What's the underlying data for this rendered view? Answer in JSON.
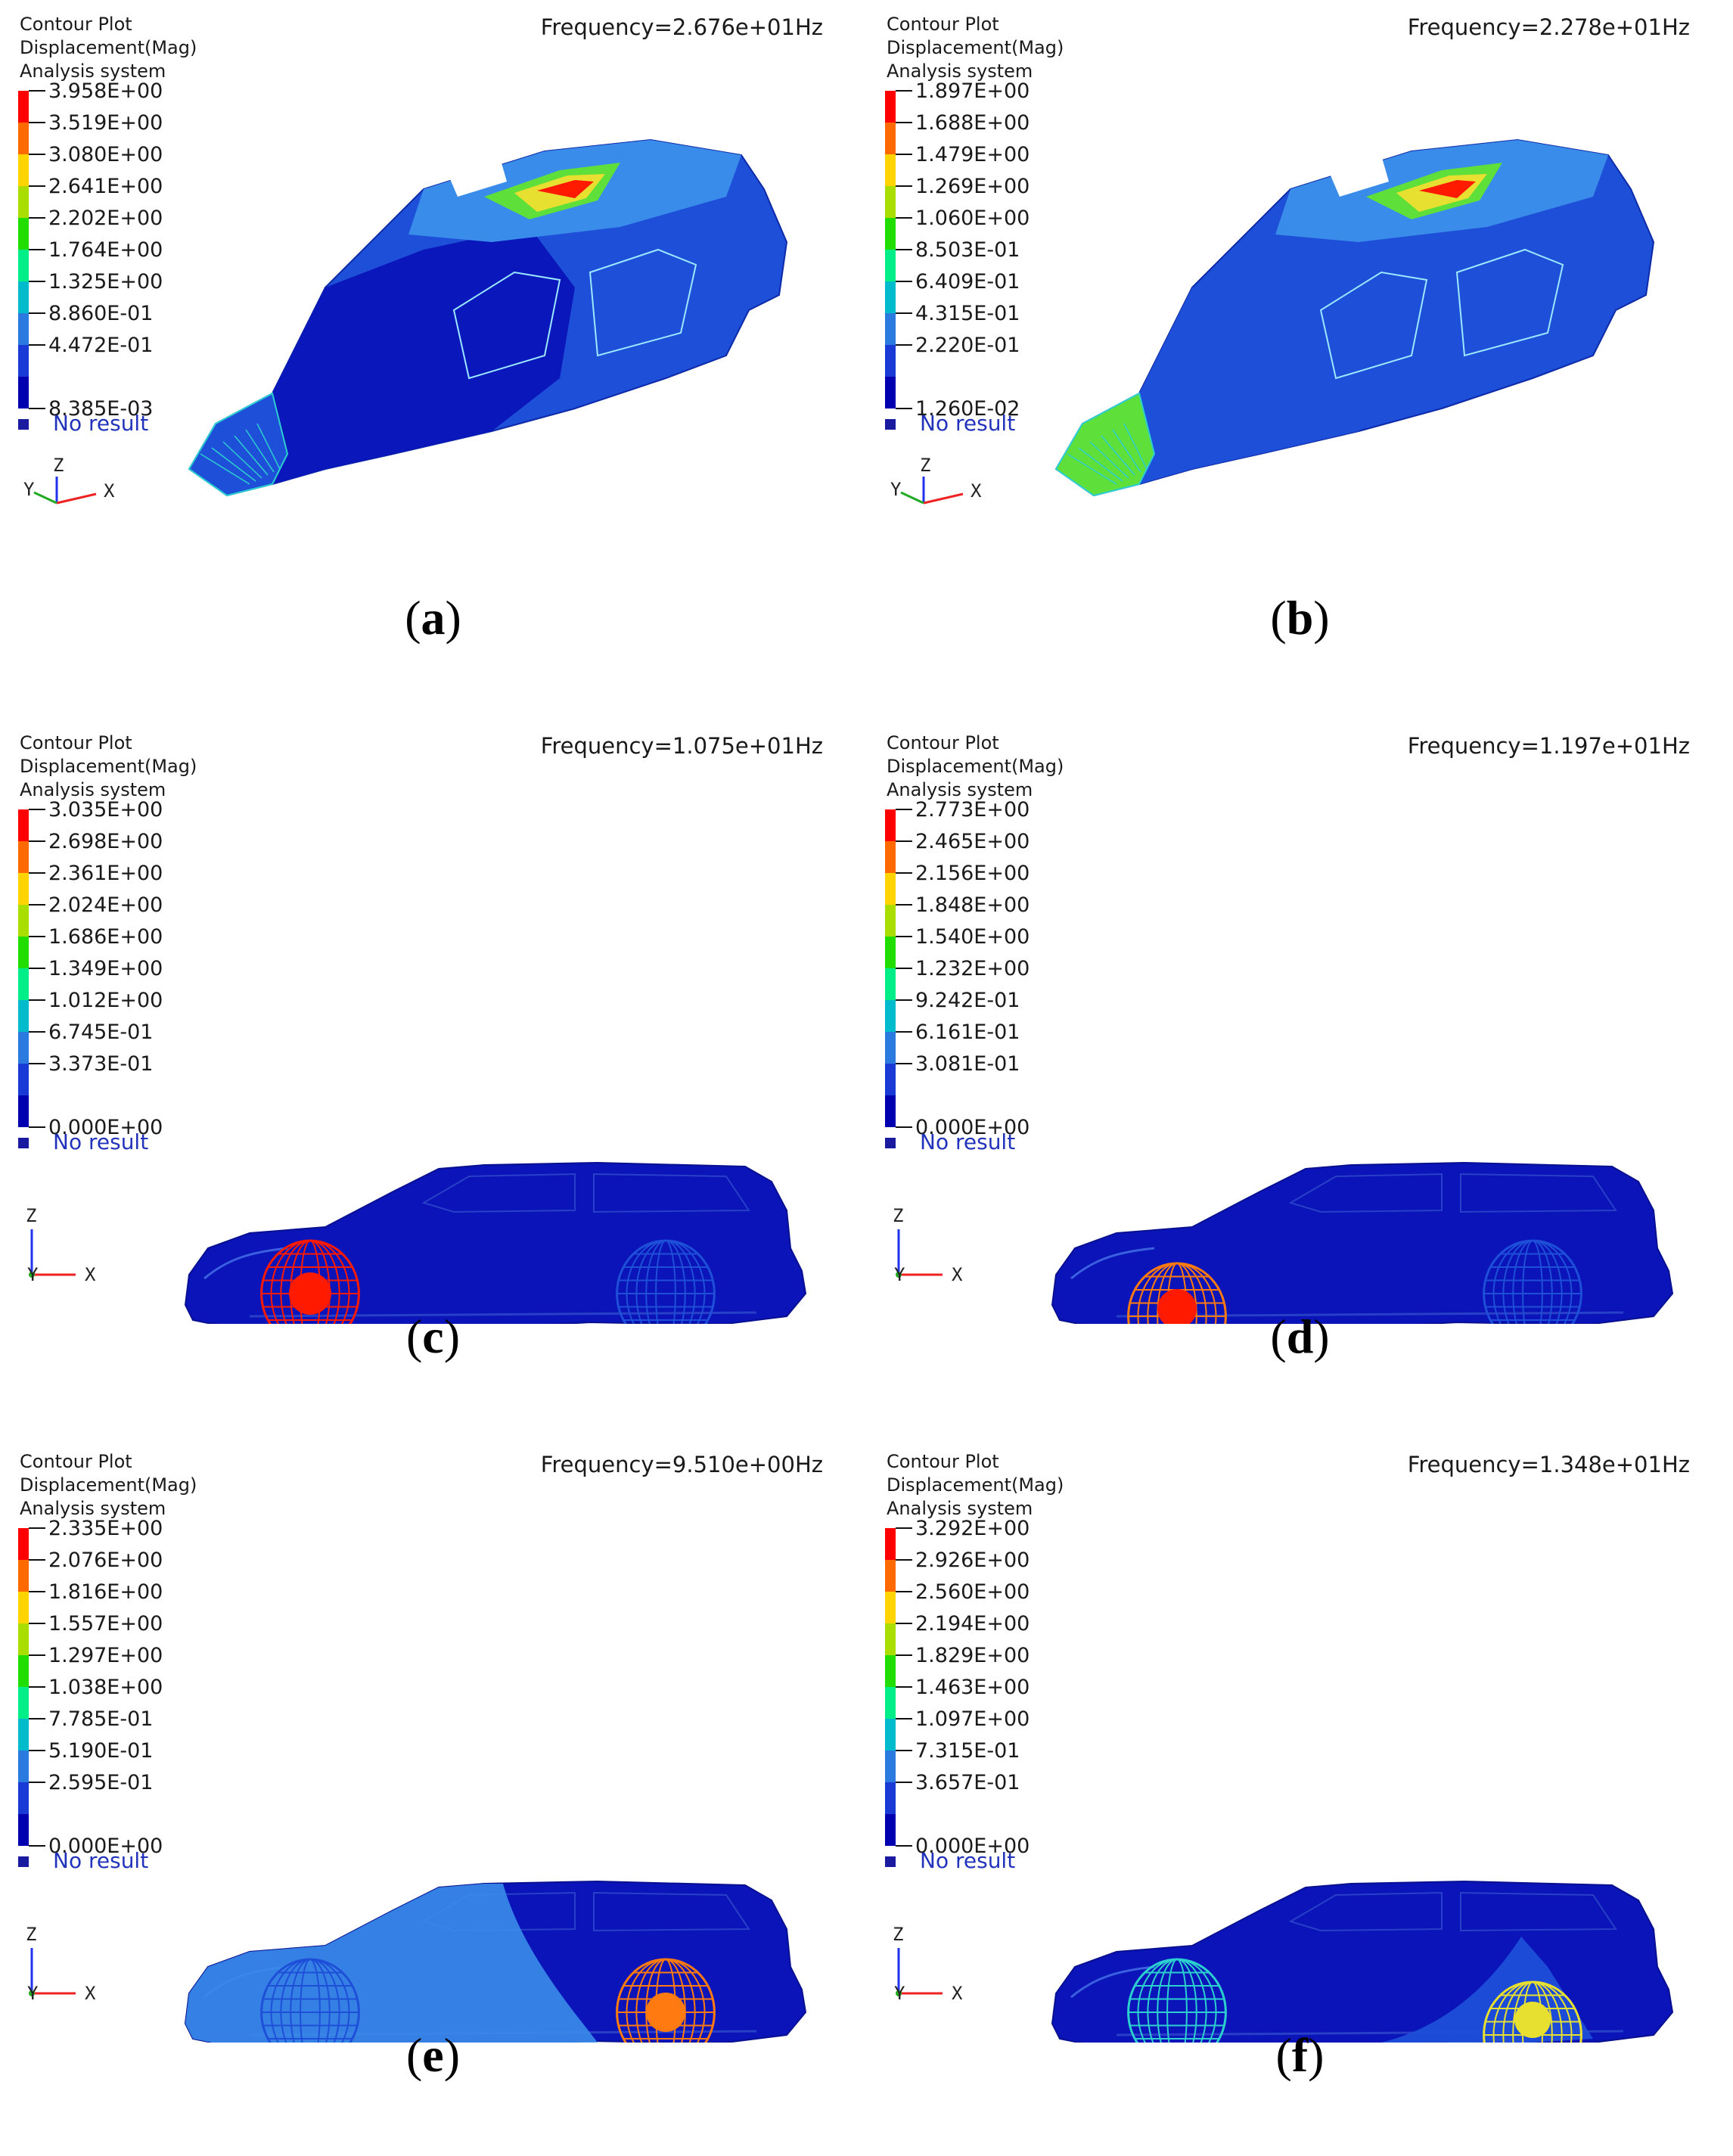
{
  "common": {
    "title_lines": [
      "Contour Plot",
      "Displacement(Mag)",
      "Analysis system"
    ],
    "no_result_label": "No result",
    "axis_labels": {
      "x": "X",
      "y": "Y",
      "z": "Z"
    },
    "legend_colors": [
      "#ff0000",
      "#ff6a00",
      "#ffd400",
      "#aadd00",
      "#22dd00",
      "#00ee88",
      "#00bbcc",
      "#2a7adf",
      "#1a3ad6",
      "#0000b0"
    ],
    "no_result_color": "#1a1aa0",
    "body_colors": {
      "dark": "#0a14b8",
      "mid": "#1e4fd8",
      "light": "#3a8cea",
      "cyan": "#2ccfd0",
      "green": "#5fdf3a",
      "yellow": "#e8e030",
      "orange": "#ff7a10",
      "red": "#ff1a00"
    }
  },
  "panels": [
    {
      "caption": "(a)",
      "frequency": "Frequency=2.676e+01Hz",
      "view": "iso",
      "axis_style": "iso",
      "legend": [
        "3.958E+00",
        "3.519E+00",
        "3.080E+00",
        "2.641E+00",
        "2.202E+00",
        "1.764E+00",
        "1.325E+00",
        "8.860E-01",
        "4.472E-01",
        "8.385E-03"
      ]
    },
    {
      "caption": "(b)",
      "frequency": "Frequency=2.278e+01Hz",
      "view": "iso",
      "axis_style": "iso",
      "legend": [
        "1.897E+00",
        "1.688E+00",
        "1.479E+00",
        "1.269E+00",
        "1.060E+00",
        "8.503E-01",
        "6.409E-01",
        "4.315E-01",
        "2.220E-01",
        "1.260E-02"
      ]
    },
    {
      "caption": "(c)",
      "frequency": "Frequency=1.075e+01Hz",
      "view": "side",
      "axis_style": "side",
      "legend": [
        "3.035E+00",
        "2.698E+00",
        "2.361E+00",
        "2.024E+00",
        "1.686E+00",
        "1.349E+00",
        "1.012E+00",
        "6.745E-01",
        "3.373E-01",
        "0.000E+00"
      ]
    },
    {
      "caption": "(d)",
      "frequency": "Frequency=1.197e+01Hz",
      "view": "side",
      "axis_style": "side",
      "legend": [
        "2.773E+00",
        "2.465E+00",
        "2.156E+00",
        "1.848E+00",
        "1.540E+00",
        "1.232E+00",
        "9.242E-01",
        "6.161E-01",
        "3.081E-01",
        "0.000E+00"
      ]
    },
    {
      "caption": "(e)",
      "frequency": "Frequency=9.510e+00Hz",
      "view": "side",
      "axis_style": "side",
      "legend": [
        "2.335E+00",
        "2.076E+00",
        "1.816E+00",
        "1.557E+00",
        "1.297E+00",
        "1.038E+00",
        "7.785E-01",
        "5.190E-01",
        "2.595E-01",
        "0.000E+00"
      ]
    },
    {
      "caption": "(f)",
      "frequency": "Frequency=1.348e+01Hz",
      "view": "side",
      "axis_style": "side",
      "legend": [
        "3.292E+00",
        "2.926E+00",
        "2.560E+00",
        "2.194E+00",
        "1.829E+00",
        "1.463E+00",
        "1.097E+00",
        "7.315E-01",
        "3.657E-01",
        "0.000E+00"
      ]
    }
  ]
}
